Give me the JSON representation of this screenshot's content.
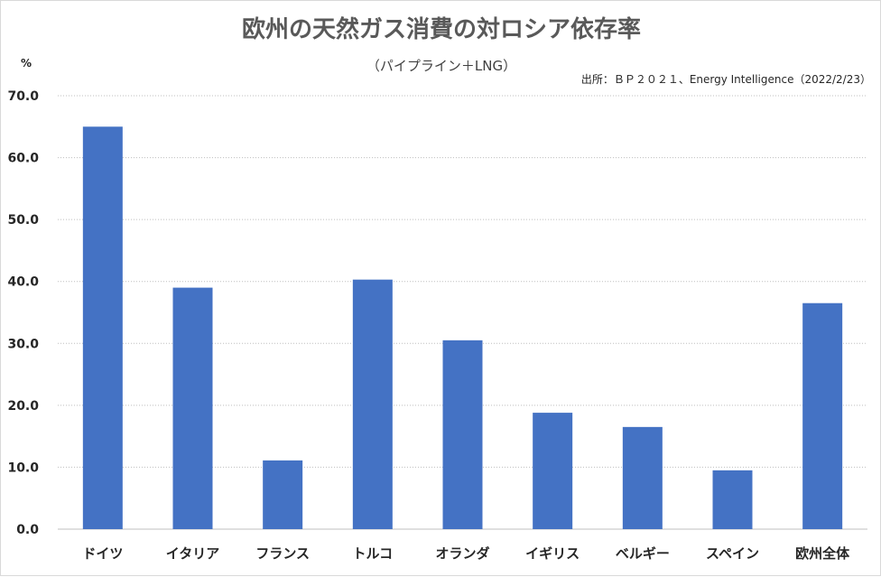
{
  "chart_data": {
    "type": "bar",
    "title": "欧州の天然ガス消費の対ロシア依存率",
    "subtitle": "（パイプライン＋LNG）",
    "source": "出所：ＢＰ２０２１、Energy Intelligence（2022/2/23）",
    "unit_label": "%",
    "categories": [
      "ドイツ",
      "イタリア",
      "フランス",
      "トルコ",
      "オランダ",
      "イギリス",
      "ベルギー",
      "スペイン",
      "欧州全体"
    ],
    "values": [
      65.0,
      39.0,
      11.1,
      40.3,
      30.5,
      18.8,
      16.5,
      9.5,
      36.5
    ],
    "ylim": [
      0,
      70
    ],
    "yticks": [
      "0.0",
      "10.0",
      "20.0",
      "30.0",
      "40.0",
      "50.0",
      "60.0",
      "70.0"
    ],
    "grid": true,
    "bar_color": "#4472c4"
  }
}
